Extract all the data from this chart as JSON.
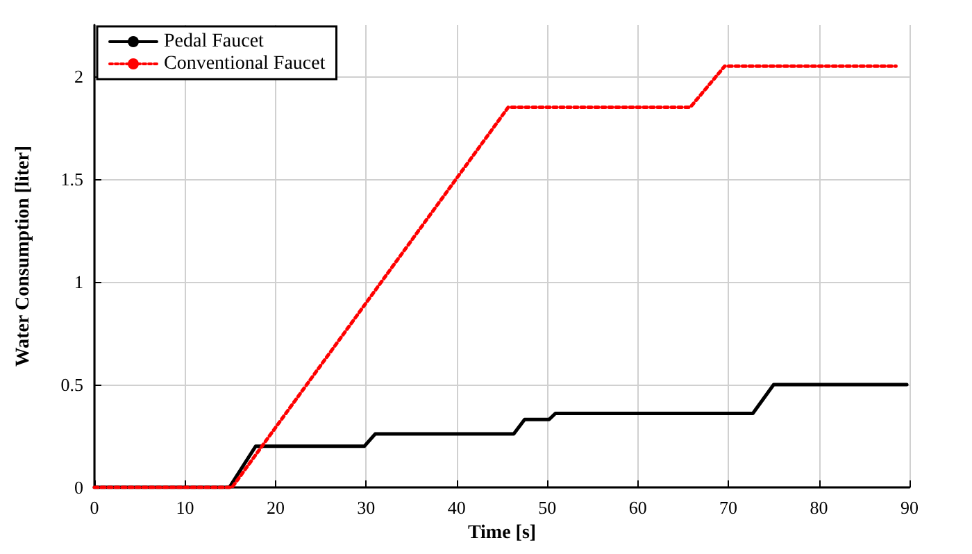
{
  "chart_data": {
    "type": "line",
    "xlabel": "Time [s]",
    "ylabel": "Water Consumption [liter]",
    "xlim": [
      0,
      90
    ],
    "xticks": [
      0,
      10,
      20,
      30,
      40,
      50,
      60,
      70,
      80,
      90
    ],
    "ylim": [
      0,
      2.25
    ],
    "yticks": [
      0,
      0.5,
      1,
      1.5,
      2
    ],
    "grid": true,
    "legend": "top left",
    "marker": "none",
    "series": [
      {
        "name": "Pedal Faucet",
        "color": "#000000",
        "line_style": "solid",
        "x": [
          0,
          14.9,
          17.8,
          29.8,
          31,
          46.3,
          47.5,
          50.2,
          50.9,
          72.7,
          75,
          89.7
        ],
        "values": [
          0,
          0,
          0.2,
          0.2,
          0.26,
          0.26,
          0.33,
          0.33,
          0.36,
          0.36,
          0.5,
          0.5
        ]
      },
      {
        "name": "Conventional Faucet",
        "color": "#ff0000",
        "line_style": "dotted",
        "x": [
          0,
          15.2,
          45.7,
          65.8,
          69.6,
          88.5
        ],
        "values": [
          0,
          0,
          1.85,
          1.85,
          2.05,
          2.05
        ]
      }
    ]
  }
}
